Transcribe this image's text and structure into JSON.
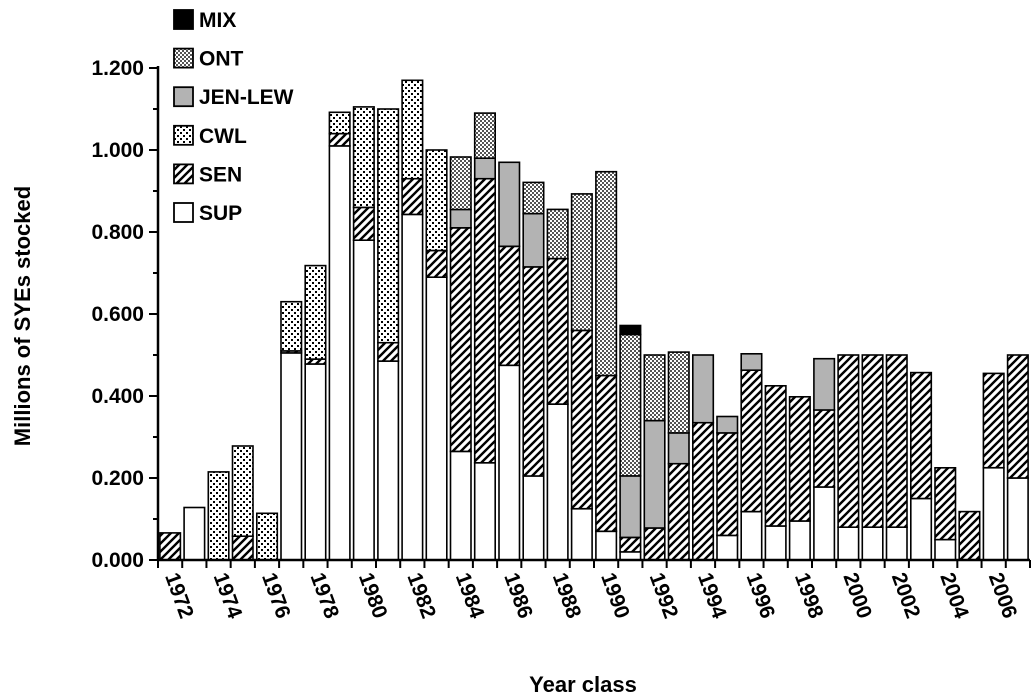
{
  "chart_data": {
    "type": "bar",
    "stacked": true,
    "title": "",
    "xlabel": "Year class",
    "ylabel": "Millions of SYEs stocked",
    "ylim": [
      0,
      1.2
    ],
    "yticks": [
      "0.000",
      "0.200",
      "0.400",
      "0.600",
      "0.800",
      "1.000",
      "1.200"
    ],
    "grid": false,
    "legend_position": "top-left",
    "categories": [
      "1972",
      "1973",
      "1974",
      "1975",
      "1976",
      "1977",
      "1978",
      "1979",
      "1980",
      "1981",
      "1982",
      "1983",
      "1984",
      "1985",
      "1986",
      "1987",
      "1988",
      "1989",
      "1990",
      "1991",
      "1992",
      "1993",
      "1994",
      "1995",
      "1996",
      "1997",
      "1998",
      "1999",
      "2000",
      "2001",
      "2002",
      "2003",
      "2004",
      "2005",
      "2006",
      "2007"
    ],
    "xtick_labels": [
      "1972",
      "1974",
      "1976",
      "1978",
      "1980",
      "1982",
      "1984",
      "1986",
      "1988",
      "1990",
      "1992",
      "1994",
      "1996",
      "1998",
      "2000",
      "2002",
      "2004",
      "2006"
    ],
    "series": [
      {
        "name": "SUP",
        "pattern": "solid-white",
        "values": [
          0,
          0.128,
          0,
          0,
          0,
          0.505,
          0.478,
          1.01,
          0.78,
          0.485,
          0.843,
          0.69,
          0.265,
          0.237,
          0.475,
          0.205,
          0.38,
          0.125,
          0.07,
          0.02,
          0,
          0,
          0,
          0.06,
          0.118,
          0.083,
          0.095,
          0.178,
          0.08,
          0.08,
          0.08,
          0.15,
          0.05,
          0,
          0.225,
          0.2
        ]
      },
      {
        "name": "SEN",
        "pattern": "diagonal-hatch",
        "values": [
          0.066,
          0,
          0,
          0.058,
          0,
          0.005,
          0.012,
          0.03,
          0.08,
          0.045,
          0.087,
          0.065,
          0.545,
          0.693,
          0.29,
          0.51,
          0.355,
          0.435,
          0.38,
          0.035,
          0.078,
          0.235,
          0.335,
          0.25,
          0.345,
          0.342,
          0.303,
          0.188,
          0.42,
          0.42,
          0.42,
          0.307,
          0.175,
          0.118,
          0.23,
          0.3
        ]
      },
      {
        "name": "CWL",
        "pattern": "dot-stipple",
        "values": [
          0,
          0,
          0.215,
          0.22,
          0.114,
          0.12,
          0.228,
          0.052,
          0.245,
          0.57,
          0.24,
          0.245,
          0,
          0,
          0,
          0,
          0,
          0,
          0,
          0,
          0,
          0,
          0,
          0,
          0,
          0,
          0,
          0,
          0,
          0,
          0,
          0,
          0,
          0,
          0,
          0
        ]
      },
      {
        "name": "JEN-LEW",
        "pattern": "solid-gray",
        "values": [
          0,
          0,
          0,
          0,
          0,
          0,
          0,
          0,
          0,
          0,
          0,
          0,
          0.045,
          0.05,
          0.205,
          0.13,
          0,
          0,
          0,
          0.15,
          0.262,
          0.075,
          0.165,
          0.04,
          0.04,
          0,
          0,
          0.125,
          0,
          0,
          0,
          0,
          0,
          0,
          0,
          0
        ]
      },
      {
        "name": "ONT",
        "pattern": "checker",
        "values": [
          0,
          0,
          0,
          0,
          0,
          0,
          0,
          0,
          0,
          0,
          0,
          0,
          0.128,
          0.11,
          0,
          0.076,
          0.12,
          0.333,
          0.497,
          0.345,
          0.16,
          0.197,
          0,
          0,
          0,
          0,
          0,
          0,
          0,
          0,
          0,
          0,
          0,
          0,
          0,
          0
        ]
      },
      {
        "name": "MIX",
        "pattern": "solid-black",
        "values": [
          0,
          0,
          0,
          0,
          0,
          0,
          0,
          0,
          0,
          0,
          0,
          0,
          0,
          0,
          0,
          0,
          0,
          0,
          0,
          0.022,
          0,
          0,
          0,
          0,
          0,
          0,
          0,
          0,
          0,
          0,
          0,
          0,
          0,
          0,
          0,
          0
        ]
      }
    ],
    "legend_order": [
      "MIX",
      "ONT",
      "JEN-LEW",
      "CWL",
      "SEN",
      "SUP"
    ],
    "colors": {
      "outline": "#000000",
      "gray_fill": "#b3b3b3",
      "background": "#ffffff"
    }
  }
}
